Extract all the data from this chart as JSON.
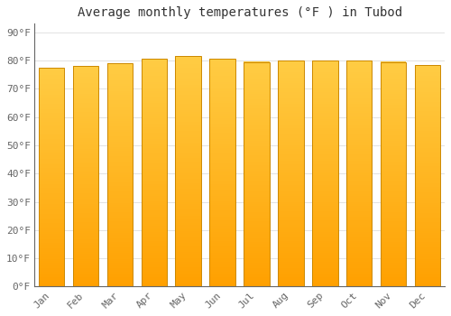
{
  "title": "Average monthly temperatures (°F ) in Tubod",
  "months": [
    "Jan",
    "Feb",
    "Mar",
    "Apr",
    "May",
    "Jun",
    "Jul",
    "Aug",
    "Sep",
    "Oct",
    "Nov",
    "Dec"
  ],
  "values": [
    77.5,
    78.0,
    79.0,
    80.5,
    81.5,
    80.5,
    79.5,
    80.0,
    80.0,
    80.0,
    79.5,
    78.5
  ],
  "bar_color_top": "#FFCC44",
  "bar_color_bottom": "#FFA000",
  "bar_edge_color": "#CC8800",
  "background_color": "#FFFFFF",
  "plot_bg_color": "#FFFFFF",
  "grid_color": "#DDDDDD",
  "yticks": [
    0,
    10,
    20,
    30,
    40,
    50,
    60,
    70,
    80,
    90
  ],
  "ytick_labels": [
    "0°F",
    "10°F",
    "20°F",
    "30°F",
    "40°F",
    "50°F",
    "60°F",
    "70°F",
    "80°F",
    "90°F"
  ],
  "ylim": [
    0,
    93
  ],
  "title_fontsize": 10,
  "tick_fontsize": 8,
  "font_family": "monospace",
  "bar_width": 0.75
}
